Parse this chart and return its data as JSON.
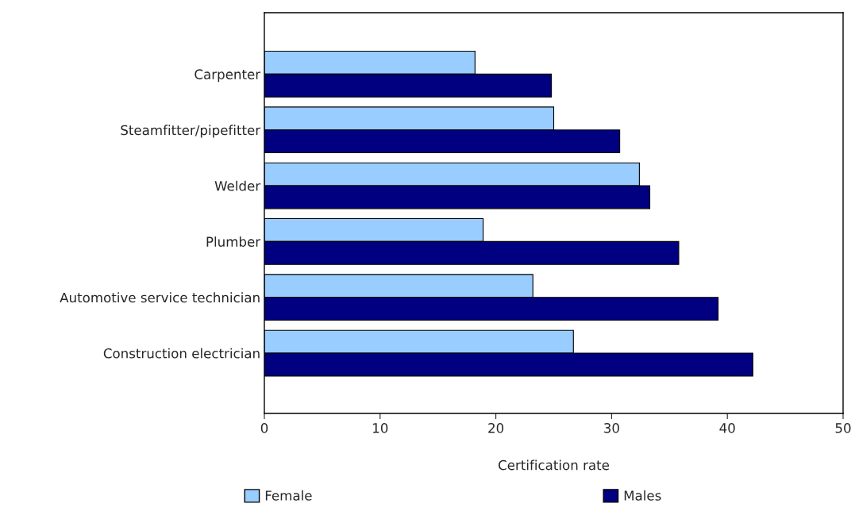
{
  "chart_data": {
    "type": "bar",
    "orientation": "horizontal",
    "xlabel": "Certification rate",
    "categories": [
      "Carpenter",
      "Steamfitter/pipefitter",
      "Welder",
      "Plumber",
      "Automotive service technician",
      "Construction electrician"
    ],
    "series": [
      {
        "name": "Female",
        "color": "#99ccff",
        "values": [
          18.2,
          25.0,
          32.4,
          18.9,
          23.2,
          26.7
        ]
      },
      {
        "name": "Males",
        "color": "#000080",
        "values": [
          24.8,
          30.7,
          33.3,
          35.8,
          39.2,
          42.2
        ]
      }
    ],
    "xlim": [
      0,
      50
    ],
    "xticks": [
      0,
      10,
      20,
      30,
      40,
      50
    ],
    "grid": false,
    "legend": "bottom"
  }
}
